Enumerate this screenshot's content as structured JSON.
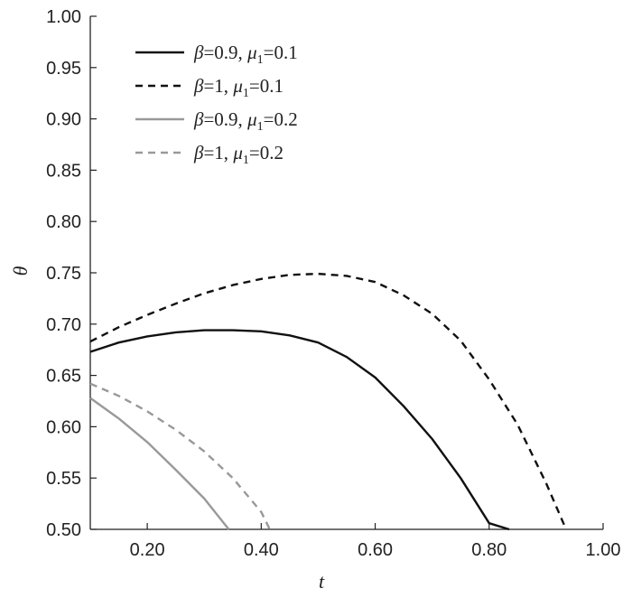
{
  "chart_data": {
    "type": "line",
    "xlabel": "t",
    "ylabel": "θ",
    "xlim": [
      0.1,
      1.0
    ],
    "ylim": [
      0.5,
      1.0
    ],
    "xticks": [
      0.2,
      0.4,
      0.6,
      0.8,
      1.0
    ],
    "xtick_labels": [
      "0.20",
      "0.40",
      "0.60",
      "0.80",
      "1.00"
    ],
    "yticks": [
      0.5,
      0.55,
      0.6,
      0.65,
      0.7,
      0.75,
      0.8,
      0.85,
      0.9,
      0.95,
      1.0
    ],
    "ytick_labels": [
      "0.50",
      "0.55",
      "0.60",
      "0.65",
      "0.70",
      "0.75",
      "0.80",
      "0.85",
      "0.90",
      "0.95",
      "1.00"
    ],
    "grid": false,
    "legend_position": "top-left",
    "series": [
      {
        "name": "β=0.9, μ1=0.1",
        "beta": "0.9",
        "mu": "0.1",
        "color": "#111111",
        "dash": "solid",
        "x": [
          0.1,
          0.15,
          0.2,
          0.25,
          0.3,
          0.35,
          0.4,
          0.45,
          0.5,
          0.55,
          0.6,
          0.65,
          0.7,
          0.75,
          0.8,
          0.835
        ],
        "y": [
          0.673,
          0.682,
          0.688,
          0.692,
          0.694,
          0.694,
          0.693,
          0.689,
          0.682,
          0.668,
          0.648,
          0.62,
          0.588,
          0.55,
          0.506,
          0.5
        ]
      },
      {
        "name": "β=1, μ1=0.1",
        "beta": "1",
        "mu": "0.1",
        "color": "#111111",
        "dash": "dashed",
        "x": [
          0.1,
          0.15,
          0.2,
          0.25,
          0.3,
          0.35,
          0.4,
          0.45,
          0.5,
          0.55,
          0.6,
          0.65,
          0.7,
          0.75,
          0.8,
          0.85,
          0.9,
          0.935
        ],
        "y": [
          0.683,
          0.697,
          0.709,
          0.72,
          0.73,
          0.738,
          0.744,
          0.748,
          0.749,
          0.747,
          0.741,
          0.728,
          0.71,
          0.684,
          0.646,
          0.602,
          0.545,
          0.5
        ]
      },
      {
        "name": "β=0.9, μ1=0.2",
        "beta": "0.9",
        "mu": "0.2",
        "color": "#999999",
        "dash": "solid",
        "x": [
          0.1,
          0.15,
          0.2,
          0.25,
          0.3,
          0.343
        ],
        "y": [
          0.628,
          0.608,
          0.585,
          0.558,
          0.53,
          0.5
        ]
      },
      {
        "name": "β=1, μ1=0.2",
        "beta": "1",
        "mu": "0.2",
        "color": "#999999",
        "dash": "dashed",
        "x": [
          0.1,
          0.15,
          0.2,
          0.25,
          0.3,
          0.35,
          0.4,
          0.415
        ],
        "y": [
          0.642,
          0.63,
          0.615,
          0.597,
          0.576,
          0.55,
          0.517,
          0.5
        ]
      }
    ]
  }
}
